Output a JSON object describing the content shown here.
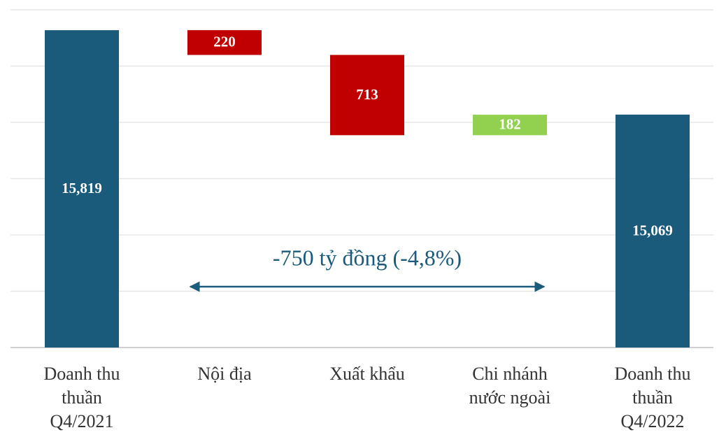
{
  "chart_data": {
    "type": "waterfall",
    "categories": [
      "Doanh thu\nthuần\nQ4/2021",
      "Nội địa",
      "Xuất khẩu",
      "Chi nhánh\nnước ngoài",
      "Doanh thu\nthuần\nQ4/2022"
    ],
    "values": [
      15819,
      -220,
      -713,
      182,
      15069
    ],
    "value_labels": [
      "15,819",
      "220",
      "713",
      "182",
      "15,069"
    ],
    "measure": [
      "absolute",
      "relative",
      "relative",
      "relative",
      "total"
    ],
    "colors": [
      "#1a5a7a",
      "#c00000",
      "#c00000",
      "#92d050",
      "#1a5a7a"
    ],
    "ylim": [
      13000,
      16000
    ],
    "yticks": [
      13000,
      13500,
      14000,
      14500,
      15000,
      15500,
      16000
    ],
    "grid": true,
    "annotation": "-750 tỷ đồng (-4,8%)"
  }
}
